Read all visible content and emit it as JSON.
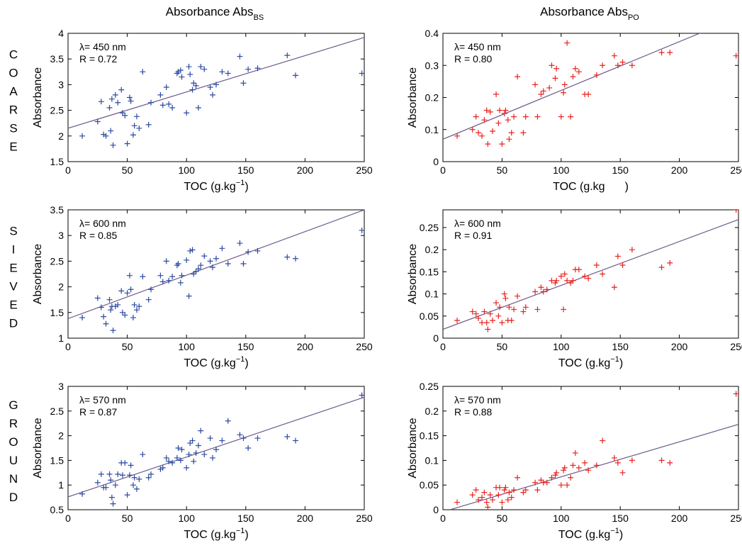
{
  "columns": [
    {
      "title": "Absorbance Abs",
      "sub": "BS"
    },
    {
      "title": "Absorbance Abs",
      "sub": "PO"
    }
  ],
  "rows": [
    {
      "label": "COARSE"
    },
    {
      "label": "SIEVED"
    },
    {
      "label": "GROUND"
    }
  ],
  "colors": {
    "bs_marker": "#2b4aa0",
    "po_marker": "#e8221e",
    "fit_line": "#6e5a8a",
    "axes": "#000000"
  },
  "chart_data": [
    {
      "type": "scatter",
      "row": 0,
      "col": 0,
      "annotation": [
        "λ= 450 nm",
        "R = 0.72"
      ],
      "xlabel": "TOC (g.kg",
      "xlabel_sup": "−1",
      "xlabel_suffix": ")",
      "ylabel": "Absorbance",
      "xlim": [
        0,
        250
      ],
      "ylim": [
        1.5,
        4
      ],
      "xticks": [
        0,
        50,
        100,
        150,
        200,
        250
      ],
      "yticks": [
        1.5,
        2,
        2.5,
        3,
        3.5,
        4
      ],
      "yticklabels": [
        "1.5",
        "2",
        "2.5",
        "3",
        "3.5",
        "4"
      ],
      "fit": [
        [
          0,
          2.15
        ],
        [
          250,
          3.92
        ]
      ],
      "x": [
        12,
        25,
        28,
        30,
        32,
        35,
        36,
        37,
        38,
        40,
        42,
        45,
        46,
        48,
        50,
        52,
        53,
        55,
        56,
        58,
        60,
        63,
        68,
        70,
        78,
        80,
        83,
        85,
        88,
        92,
        93,
        95,
        96,
        100,
        102,
        103,
        105,
        106,
        108,
        110,
        112,
        115,
        120,
        122,
        125,
        130,
        135,
        145,
        148,
        152,
        160,
        185,
        192,
        248
      ],
      "y": [
        2.0,
        2.28,
        2.67,
        2.03,
        2.0,
        2.55,
        2.1,
        2.72,
        1.82,
        2.8,
        2.65,
        2.9,
        2.45,
        2.4,
        1.85,
        2.75,
        2.68,
        2.02,
        2.2,
        2.38,
        2.15,
        3.25,
        2.22,
        2.65,
        2.8,
        2.6,
        2.95,
        2.62,
        2.55,
        3.22,
        3.25,
        3.28,
        3.15,
        2.45,
        3.35,
        3.2,
        2.9,
        3.03,
        2.98,
        2.55,
        3.35,
        3.3,
        2.95,
        2.8,
        3.0,
        3.25,
        3.22,
        3.55,
        3.03,
        3.3,
        3.32,
        3.57,
        3.18,
        3.22
      ]
    },
    {
      "type": "scatter",
      "row": 0,
      "col": 1,
      "annotation": [
        "λ= 450 nm",
        "R = 0.80"
      ],
      "xlabel": "TOC (g.kg",
      "xlabel_sup": "",
      "xlabel_suffix": ")",
      "ylabel": "Absorbance",
      "xlim": [
        0,
        250
      ],
      "ylim": [
        0,
        0.4
      ],
      "xticks": [
        0,
        50,
        100,
        150,
        200,
        250
      ],
      "yticks": [
        0,
        0.1,
        0.2,
        0.3,
        0.4
      ],
      "yticklabels": [
        "0",
        "0.1",
        "0.2",
        "0.3",
        "0.4"
      ],
      "fit": [
        [
          0,
          0.07
        ],
        [
          250,
          0.45
        ]
      ],
      "x": [
        12,
        25,
        28,
        30,
        33,
        35,
        37,
        38,
        40,
        42,
        45,
        47,
        48,
        50,
        52,
        53,
        55,
        56,
        58,
        60,
        63,
        68,
        70,
        78,
        80,
        83,
        85,
        90,
        92,
        95,
        96,
        100,
        102,
        103,
        105,
        108,
        110,
        112,
        115,
        120,
        123,
        130,
        135,
        145,
        148,
        152,
        160,
        185,
        192,
        248
      ],
      "y": [
        0.08,
        0.1,
        0.14,
        0.09,
        0.08,
        0.13,
        0.16,
        0.055,
        0.155,
        0.095,
        0.21,
        0.12,
        0.16,
        0.055,
        0.15,
        0.16,
        0.13,
        0.07,
        0.09,
        0.14,
        0.265,
        0.09,
        0.14,
        0.24,
        0.14,
        0.21,
        0.22,
        0.23,
        0.3,
        0.26,
        0.29,
        0.14,
        0.215,
        0.24,
        0.37,
        0.14,
        0.265,
        0.29,
        0.28,
        0.21,
        0.21,
        0.27,
        0.3,
        0.33,
        0.3,
        0.31,
        0.3,
        0.34,
        0.34,
        0.33
      ]
    },
    {
      "type": "scatter",
      "row": 1,
      "col": 0,
      "annotation": [
        "λ= 600 nm",
        "R = 0.85"
      ],
      "xlabel": "TOC (g.kg",
      "xlabel_sup": "−1",
      "xlabel_suffix": ")",
      "ylabel": "Absorbance",
      "xlim": [
        0,
        250
      ],
      "ylim": [
        1,
        3.5
      ],
      "xticks": [
        0,
        50,
        100,
        150,
        200,
        250
      ],
      "yticks": [
        1,
        1.5,
        2,
        2.5,
        3,
        3.5
      ],
      "yticklabels": [
        "1",
        "1.5",
        "2",
        "2.5",
        "3",
        "3.5"
      ],
      "fit": [
        [
          0,
          1.38
        ],
        [
          250,
          3.5
        ]
      ],
      "x": [
        12,
        25,
        28,
        30,
        32,
        35,
        36,
        37,
        38,
        40,
        42,
        45,
        46,
        48,
        50,
        52,
        53,
        55,
        56,
        58,
        60,
        63,
        68,
        70,
        78,
        80,
        83,
        85,
        88,
        92,
        93,
        95,
        96,
        100,
        102,
        103,
        105,
        106,
        108,
        110,
        112,
        115,
        120,
        122,
        125,
        130,
        135,
        145,
        148,
        152,
        160,
        185,
        192,
        248
      ],
      "y": [
        1.4,
        1.78,
        1.6,
        1.42,
        1.28,
        1.75,
        1.55,
        1.62,
        1.15,
        1.62,
        1.65,
        1.92,
        1.5,
        1.45,
        1.88,
        2.22,
        1.95,
        1.4,
        1.65,
        1.55,
        1.62,
        2.2,
        1.75,
        1.95,
        2.22,
        2.1,
        2.5,
        2.12,
        2.2,
        2.42,
        2.45,
        2.08,
        2.22,
        2.52,
        1.82,
        2.7,
        2.72,
        2.25,
        2.3,
        2.35,
        2.42,
        2.6,
        2.5,
        2.38,
        2.55,
        2.75,
        2.45,
        2.85,
        2.45,
        2.68,
        2.7,
        2.58,
        2.55,
        3.1
      ]
    },
    {
      "type": "scatter",
      "row": 1,
      "col": 1,
      "annotation": [
        "λ= 600 nm",
        "R = 0.91"
      ],
      "xlabel": "TOC (g.kg",
      "xlabel_sup": "−1",
      "xlabel_suffix": ")",
      "ylabel": "Absorbance",
      "xlim": [
        0,
        250
      ],
      "ylim": [
        0,
        0.29
      ],
      "xticks": [
        0,
        50,
        100,
        150,
        200,
        250
      ],
      "yticks": [
        0,
        0.05,
        0.1,
        0.15,
        0.2,
        0.25
      ],
      "yticklabels": [
        "0",
        "0.05",
        "0.1",
        "0.15",
        "0.2",
        "0.25"
      ],
      "fit": [
        [
          0,
          0.02
        ],
        [
          250,
          0.268
        ]
      ],
      "x": [
        12,
        25,
        28,
        30,
        33,
        35,
        37,
        38,
        40,
        42,
        45,
        47,
        48,
        50,
        52,
        53,
        55,
        56,
        58,
        60,
        63,
        68,
        70,
        78,
        80,
        83,
        85,
        88,
        92,
        95,
        96,
        100,
        102,
        103,
        105,
        108,
        110,
        112,
        115,
        120,
        123,
        130,
        135,
        145,
        148,
        152,
        160,
        185,
        192,
        248
      ],
      "y": [
        0.04,
        0.06,
        0.055,
        0.045,
        0.035,
        0.06,
        0.035,
        0.02,
        0.055,
        0.04,
        0.08,
        0.05,
        0.07,
        0.035,
        0.1,
        0.09,
        0.04,
        0.07,
        0.04,
        0.065,
        0.095,
        0.06,
        0.07,
        0.105,
        0.065,
        0.115,
        0.105,
        0.11,
        0.13,
        0.125,
        0.13,
        0.14,
        0.065,
        0.145,
        0.13,
        0.125,
        0.13,
        0.155,
        0.155,
        0.14,
        0.135,
        0.165,
        0.145,
        0.115,
        0.185,
        0.165,
        0.2,
        0.16,
        0.17,
        0.29
      ]
    },
    {
      "type": "scatter",
      "row": 2,
      "col": 0,
      "annotation": [
        "λ= 570 nm",
        "R = 0.87"
      ],
      "xlabel": "TOC (g.kg",
      "xlabel_sup": "−1",
      "xlabel_suffix": ")",
      "ylabel": "Absorbance",
      "xlim": [
        0,
        250
      ],
      "ylim": [
        0.5,
        3
      ],
      "xticks": [
        0,
        50,
        100,
        150,
        200,
        250
      ],
      "yticks": [
        0.5,
        1,
        1.5,
        2,
        2.5,
        3
      ],
      "yticklabels": [
        "0.5",
        "1",
        "1.5",
        "2",
        "2.5",
        "3"
      ],
      "fit": [
        [
          0,
          0.76
        ],
        [
          250,
          2.78
        ]
      ],
      "x": [
        12,
        25,
        28,
        30,
        32,
        35,
        36,
        37,
        38,
        40,
        42,
        45,
        46,
        48,
        50,
        52,
        53,
        55,
        56,
        58,
        60,
        63,
        68,
        70,
        78,
        80,
        83,
        85,
        88,
        92,
        93,
        95,
        96,
        100,
        102,
        103,
        105,
        106,
        108,
        110,
        112,
        115,
        120,
        122,
        125,
        130,
        135,
        145,
        148,
        152,
        160,
        185,
        192,
        248
      ],
      "y": [
        0.82,
        1.05,
        1.22,
        0.95,
        0.95,
        1.22,
        1.1,
        0.75,
        0.62,
        1.0,
        1.22,
        1.45,
        1.2,
        1.45,
        0.8,
        1.2,
        1.4,
        1.0,
        1.15,
        0.92,
        1.12,
        1.62,
        1.15,
        1.22,
        1.32,
        1.35,
        1.55,
        1.48,
        1.45,
        1.55,
        1.75,
        1.5,
        1.72,
        1.35,
        1.62,
        1.85,
        1.9,
        1.48,
        1.65,
        1.8,
        2.1,
        1.62,
        1.95,
        1.55,
        1.72,
        1.9,
        2.3,
        2.02,
        1.95,
        1.75,
        1.95,
        1.98,
        1.9,
        2.82
      ]
    },
    {
      "type": "scatter",
      "row": 2,
      "col": 1,
      "annotation": [
        "λ= 570 nm",
        "R = 0.88"
      ],
      "xlabel": "TOC (g.kg",
      "xlabel_sup": "−1",
      "xlabel_suffix": ")",
      "ylabel": "Absorbance",
      "xlim": [
        0,
        250
      ],
      "ylim": [
        0,
        0.25
      ],
      "xticks": [
        0,
        50,
        100,
        150,
        200,
        250
      ],
      "yticks": [
        0,
        0.05,
        0.1,
        0.15,
        0.2,
        0.25
      ],
      "yticklabels": [
        "0",
        "0.05",
        "0.1",
        "0.15",
        "0.2",
        "0.25"
      ],
      "fit": [
        [
          6,
          0.0
        ],
        [
          250,
          0.173
        ]
      ],
      "x": [
        12,
        25,
        28,
        30,
        33,
        35,
        37,
        38,
        40,
        42,
        45,
        47,
        48,
        50,
        52,
        53,
        55,
        56,
        58,
        60,
        63,
        68,
        70,
        78,
        80,
        83,
        85,
        88,
        92,
        95,
        96,
        100,
        102,
        103,
        105,
        108,
        110,
        112,
        115,
        120,
        123,
        130,
        135,
        145,
        148,
        152,
        160,
        185,
        192,
        248
      ],
      "y": [
        0.015,
        0.03,
        0.04,
        0.02,
        0.025,
        0.035,
        0.015,
        0.005,
        0.03,
        0.02,
        0.045,
        0.03,
        0.045,
        0.015,
        0.04,
        0.045,
        0.02,
        0.035,
        0.025,
        0.04,
        0.065,
        0.035,
        0.04,
        0.055,
        0.04,
        0.06,
        0.055,
        0.055,
        0.065,
        0.07,
        0.075,
        0.05,
        0.08,
        0.085,
        0.05,
        0.065,
        0.09,
        0.115,
        0.085,
        0.095,
        0.08,
        0.09,
        0.14,
        0.105,
        0.095,
        0.075,
        0.1,
        0.1,
        0.095,
        0.235
      ]
    }
  ]
}
